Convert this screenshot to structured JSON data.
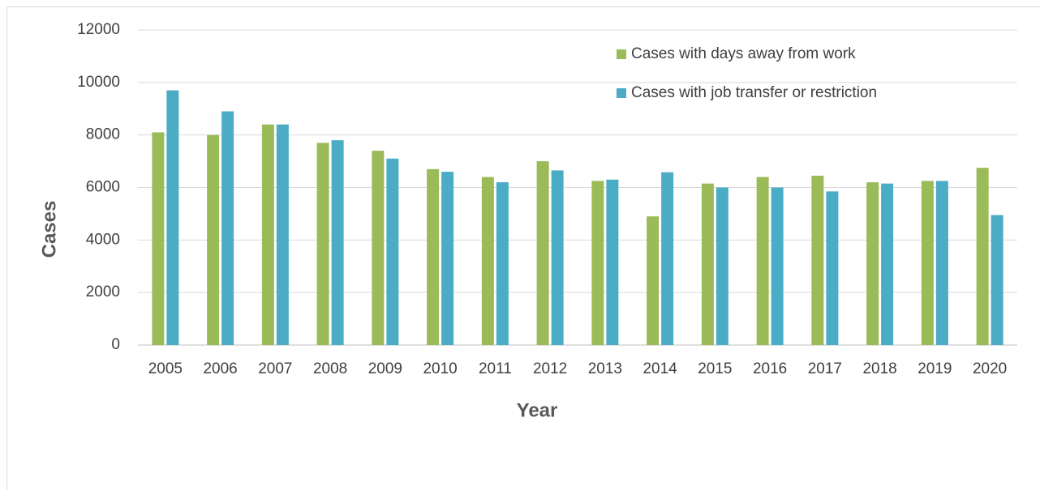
{
  "chart_data": {
    "type": "bar",
    "x_label": "Year",
    "y_label": "Cases",
    "categories": [
      "2005",
      "2006",
      "2007",
      "2008",
      "2009",
      "2010",
      "2011",
      "2012",
      "2013",
      "2014",
      "2015",
      "2016",
      "2017",
      "2018",
      "2019",
      "2020"
    ],
    "series": [
      {
        "name": "Cases with days away from work",
        "color": "#9bbb59",
        "values": [
          8100,
          8000,
          8400,
          7700,
          7400,
          6700,
          6400,
          7000,
          6250,
          4900,
          6150,
          6400,
          6450,
          6200,
          6250,
          6750
        ]
      },
      {
        "name": "Cases with job transfer or restriction",
        "color": "#4bacc6",
        "values": [
          9700,
          8900,
          8400,
          7800,
          7100,
          6600,
          6200,
          6650,
          6300,
          6580,
          6000,
          6000,
          5850,
          6150,
          6250,
          4950
        ]
      }
    ],
    "ylim": [
      0,
      12000
    ],
    "yticks": [
      0,
      2000,
      4000,
      6000,
      8000,
      10000,
      12000
    ],
    "grid": true
  }
}
